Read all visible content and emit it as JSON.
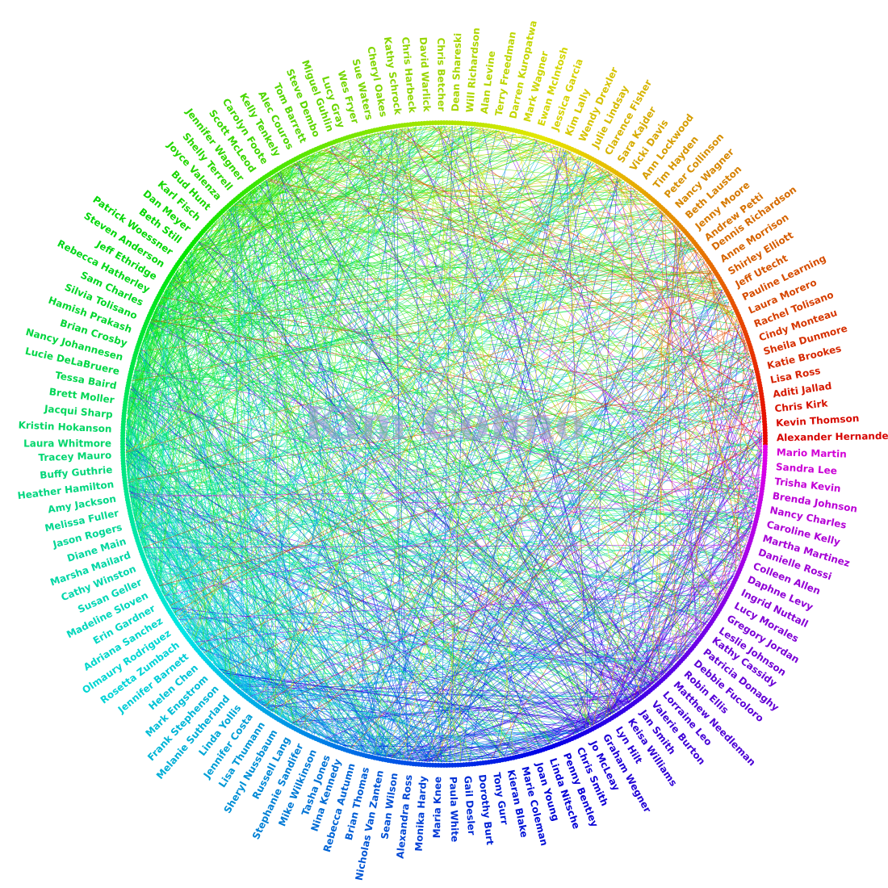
{
  "title": "Kim Cofino",
  "names": [
    "Alexander Hernandez",
    "Kevin Thomson",
    "Chris Kirk",
    "Aditi Jallad",
    "Lisa Ross",
    "Katie Brookes",
    "Sheila Dunmore",
    "Cindy Monteau",
    "Rachel Tolisano",
    "Laura Morero",
    "Pauline Learning",
    "Jeff Utecht",
    "Shirley Elliott",
    "Anne Morrison",
    "Dennis Richardson",
    "Andrew Petti",
    "Jenny Moore",
    "Beth Lauston",
    "Nancy Wagner",
    "Peter Collinson",
    "Tim Hayden",
    "Ann Lockwood",
    "Vicki Davis",
    "Sara Kajder",
    "Clarence Fisher",
    "Julie Lindsay",
    "Wendy Drexler",
    "Kim Lally",
    "Jessica Garcia",
    "Ewan McIntosh",
    "Mark Wagner",
    "Darren Kuropatwa",
    "Terry Freedman",
    "Alan Levine",
    "Will Richardson",
    "Dean Shareski",
    "Chris Betcher",
    "David Warlick",
    "Chris Harbeck",
    "Kathy Schrock",
    "Cheryl Oakes",
    "Sue Waters",
    "Wes Fryer",
    "Lucy Gray",
    "Miguel Guhlin",
    "Steve Dembo",
    "Tom Barrett",
    "Alec Couros",
    "Kelly Tenkely",
    "Carolyn Foote",
    "Scott McLeod",
    "Jennifer Wagner",
    "Shelly Terrell",
    "Joyce Valenza",
    "Bud Hunt",
    "Karl Fisch",
    "Dan Meyer",
    "Beth Still",
    "Patrick Woessner",
    "Steven Anderson",
    "Jeff Ethridge",
    "Rebecca Hatherley",
    "Sam Charles",
    "Silvia Tolisano",
    "Hamish Prakash",
    "Brian Crosby",
    "Nancy Johannesen",
    "Lucie DeLaBruere",
    "Tessa Baird",
    "Brett Moller",
    "Jacqui Sharp",
    "Kristin Hokanson",
    "Laura Whitmore",
    "Tracey Mauro",
    "Buffy Guthrie",
    "Heather Hamilton",
    "Amy Jackson",
    "Melissa Fuller",
    "Jason Rogers",
    "Diane Main",
    "Marsha Mailard",
    "Cathy Winston",
    "Susan Geller",
    "Madeline Sloven",
    "Erin Gardner",
    "Adriana Sanchez",
    "Olmaury Rodriguez",
    "Rosetta Zumbach",
    "Jennifer Barnett",
    "Helen Chen",
    "Mark Engstrom",
    "Frank Stephenson",
    "Melanie Sutherland",
    "Linda Yollis",
    "Jennifer Costa",
    "Lisa Thumann",
    "Sheryl Nussbaum",
    "Russell Lang",
    "Stephanie Sandifer",
    "Mike Wilkinson",
    "Tasha Jones",
    "Nina Kennedy",
    "Rebecca Autumn",
    "Brian Thomas",
    "Nicholas Van Zanten",
    "Sean Wilson",
    "Alexandra Ross",
    "Monika Hardy",
    "Maria Knee",
    "Paula White",
    "Gail Desler",
    "Dorothy Burt",
    "Tony Gurr",
    "Kieran Blake",
    "Marie Coleman",
    "Joan Young",
    "Linda Nitsche",
    "Penny Bentley",
    "Chris Smith",
    "Jo McLeay",
    "Graham Wegner",
    "Lyn Hilt",
    "Keisa Williams",
    "Jan Smith",
    "Valerie Burton",
    "Lorraine Leo",
    "Matthew Needleman",
    "Robin Ellis",
    "Debbie Fucoloro",
    "Patricia Donaghy",
    "Kathy Cassidy",
    "Leslie Johnson",
    "Gregory Jordan",
    "Lucy Morales",
    "Ingrid Nuttall",
    "Daphne Levy",
    "Colleen Allen",
    "Danielle Rossi",
    "Martha Martinez",
    "Caroline Kelly",
    "Nancy Charles",
    "Brenda Johnson",
    "Trisha Kevin",
    "Sandra Lee",
    "Mario Martin"
  ],
  "colors": {
    "background": "#ffffff",
    "title": "#9696cd"
  }
}
